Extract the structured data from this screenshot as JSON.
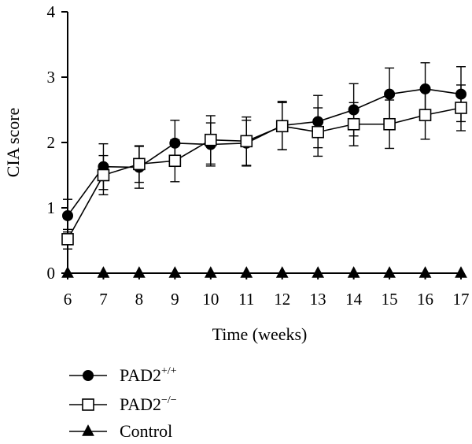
{
  "chart_data": {
    "type": "line",
    "xlabel": "Time (weeks)",
    "ylabel": "CIA score",
    "xlim": [
      6,
      17
    ],
    "ylim": [
      0,
      4
    ],
    "x_ticks": [
      6,
      7,
      8,
      9,
      10,
      11,
      12,
      13,
      14,
      15,
      16,
      17
    ],
    "y_ticks": [
      0,
      1,
      2,
      3,
      4
    ],
    "grid": false,
    "legend_position": "bottom-left",
    "x": [
      6,
      7,
      8,
      9,
      10,
      11,
      12,
      13,
      14,
      15,
      16,
      17
    ],
    "series": [
      {
        "name": "PAD2",
        "name_sup": "+/+",
        "marker": "filled-circle",
        "values": [
          0.88,
          1.63,
          1.62,
          1.99,
          1.97,
          1.99,
          2.26,
          2.32,
          2.5,
          2.74,
          2.82,
          2.74
        ],
        "error": [
          0.25,
          0.35,
          0.32,
          0.35,
          0.33,
          0.35,
          0.37,
          0.4,
          0.4,
          0.4,
          0.4,
          0.42
        ]
      },
      {
        "name": "PAD2",
        "name_sup": "−/−",
        "marker": "open-square",
        "values": [
          0.52,
          1.5,
          1.67,
          1.72,
          2.04,
          2.02,
          2.25,
          2.16,
          2.28,
          2.28,
          2.42,
          2.53
        ],
        "error": [
          0.15,
          0.3,
          0.28,
          0.32,
          0.37,
          0.37,
          0.36,
          0.37,
          0.33,
          0.37,
          0.37,
          0.35
        ]
      },
      {
        "name": "Control",
        "name_sup": "",
        "marker": "filled-triangle",
        "values": [
          0,
          0,
          0,
          0,
          0,
          0,
          0,
          0,
          0,
          0,
          0,
          0
        ],
        "error": [
          0,
          0,
          0,
          0,
          0,
          0,
          0,
          0,
          0,
          0,
          0,
          0
        ]
      }
    ]
  }
}
